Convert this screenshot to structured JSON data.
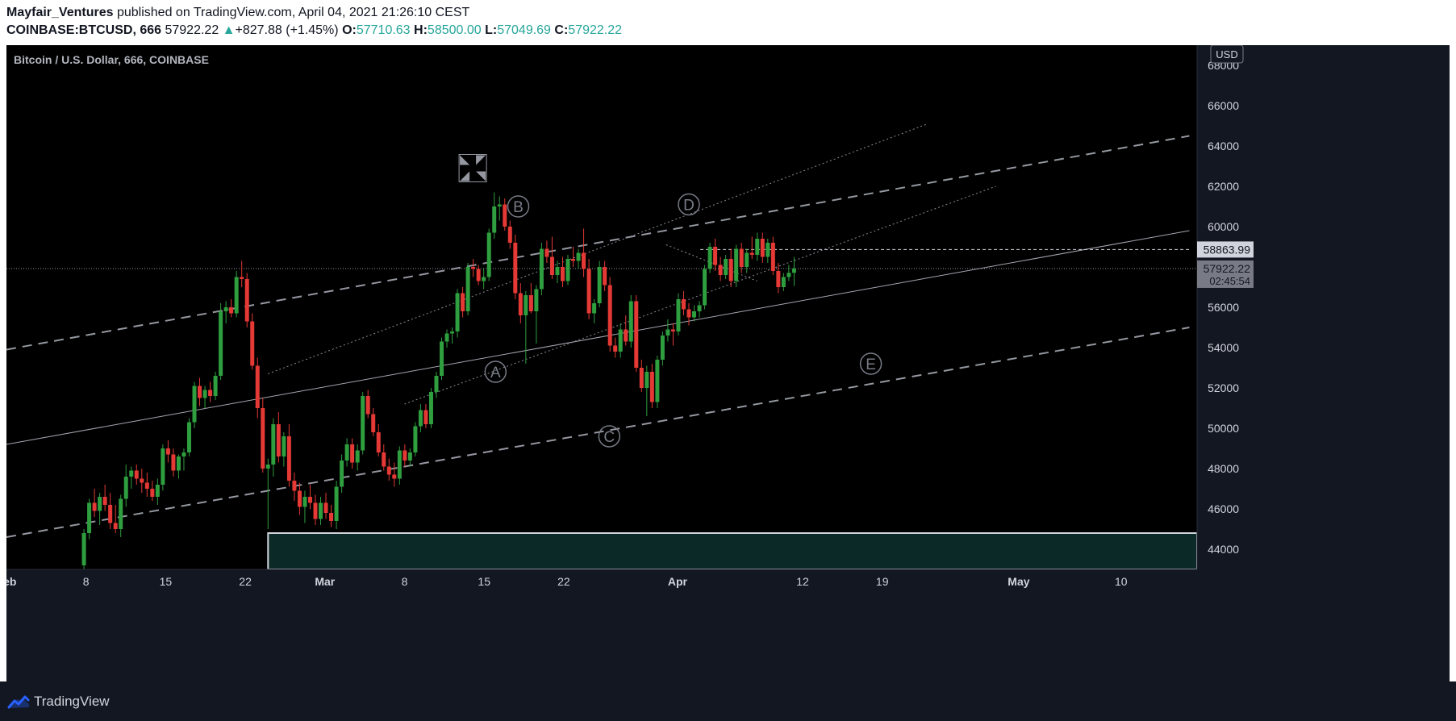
{
  "header": {
    "author": "Mayfair_Ventures",
    "published": "published on TradingView.com, April 04, 2021 21:26:10 CEST",
    "symbol": "COINBASE:BTCUSD, 666",
    "last": "57922.22",
    "arrow": "▲",
    "change": "+827.88 (+1.45%)",
    "o_label": "O:",
    "o_value": "57710.63",
    "h_label": "H:",
    "h_value": "58500.00",
    "l_label": "L:",
    "l_value": "57049.69",
    "c_label": "C:",
    "c_value": "57922.22"
  },
  "chart_title": "Bitcoin / U.S. Dollar, 666, COINBASE",
  "currency": "USD",
  "footer": {
    "brand": "TradingView"
  },
  "colors": {
    "background": "#131722",
    "up": "#26a69a",
    "up_candle": "#2e9e3f",
    "down_candle": "#e53935",
    "text": "#b2b5be",
    "axis_text": "#d1d4dc"
  },
  "chart_data": {
    "type": "candlestick",
    "title": "Bitcoin / U.S. Dollar, 666, COINBASE",
    "timeframe_minutes": 666,
    "ylim": [
      43000,
      69000
    ],
    "y_ticks": [
      44000,
      46000,
      48000,
      50000,
      52000,
      54000,
      56000,
      58000,
      60000,
      62000,
      64000,
      66000,
      68000
    ],
    "y_tick_labels": [
      "44000",
      "46000",
      "48000",
      "50000",
      "52000",
      "54000",
      "56000",
      "58000",
      "60000",
      "62000",
      "64000",
      "66000",
      "68000"
    ],
    "x_ticks": [
      {
        "label": "Feb",
        "date": "2021-02-01"
      },
      {
        "label": "8",
        "date": "2021-02-08"
      },
      {
        "label": "15",
        "date": "2021-02-15"
      },
      {
        "label": "22",
        "date": "2021-02-22"
      },
      {
        "label": "Mar",
        "date": "2021-03-01"
      },
      {
        "label": "8",
        "date": "2021-03-08"
      },
      {
        "label": "15",
        "date": "2021-03-15"
      },
      {
        "label": "22",
        "date": "2021-03-22"
      },
      {
        "label": "Apr",
        "date": "2021-04-01"
      },
      {
        "label": "12",
        "date": "2021-04-12"
      },
      {
        "label": "19",
        "date": "2021-04-19"
      },
      {
        "label": "May",
        "date": "2021-05-01"
      },
      {
        "label": "10",
        "date": "2021-05-10"
      }
    ],
    "price_labels": [
      {
        "value": 58863.99,
        "text": "58863.99",
        "style": "dashed-level"
      },
      {
        "value": 57922.22,
        "text": "57922.22",
        "sub": "02:45:54",
        "style": "last-price"
      }
    ],
    "last_price": 57922.22,
    "countdown": "02:45:54",
    "wave_labels": [
      {
        "label": "A",
        "date": "2021-03-16",
        "price": 52800
      },
      {
        "label": "B",
        "date": "2021-03-18",
        "price": 61000
      },
      {
        "label": "C",
        "date": "2021-03-26",
        "price": 49600
      },
      {
        "label": "D",
        "date": "2021-04-02",
        "price": 61100
      },
      {
        "label": "E",
        "date": "2021-04-18",
        "price": 53200
      }
    ],
    "cross_marker": {
      "date": "2021-03-14",
      "price": 62900
    },
    "trendlines": [
      {
        "style": "dashed",
        "from": {
          "date": "2021-02-01",
          "price": 53900
        },
        "to": {
          "date": "2021-05-16",
          "price": 64500
        }
      },
      {
        "style": "dashed",
        "from": {
          "date": "2021-02-01",
          "price": 44600
        },
        "to": {
          "date": "2021-05-16",
          "price": 55000
        }
      },
      {
        "style": "solid",
        "from": {
          "date": "2021-02-01",
          "price": 49200
        },
        "to": {
          "date": "2021-05-16",
          "price": 59800
        }
      },
      {
        "style": "dotted",
        "from": {
          "date": "2021-02-24",
          "price": 52700
        },
        "to": {
          "date": "2021-04-23",
          "price": 65100
        }
      },
      {
        "style": "dotted",
        "from": {
          "date": "2021-03-08",
          "price": 51200
        },
        "to": {
          "date": "2021-04-29",
          "price": 62000
        }
      },
      {
        "style": "dotted",
        "from": {
          "date": "2021-03-31",
          "price": 59100
        },
        "to": {
          "date": "2021-04-08",
          "price": 57300
        }
      },
      {
        "style": "dashed-level",
        "from": {
          "date": "2021-04-03",
          "price": 58864
        },
        "to": {
          "date": "2021-05-16",
          "price": 58864
        }
      }
    ],
    "zone": {
      "from_date": "2021-02-24",
      "to_date": "2021-05-16",
      "top": 44800,
      "bottom": 43000
    },
    "candles": [
      {
        "o": 43200,
        "h": 45000,
        "l": 43000,
        "c": 44800
      },
      {
        "o": 44800,
        "h": 46500,
        "l": 44500,
        "c": 46300
      },
      {
        "o": 46300,
        "h": 47000,
        "l": 45600,
        "c": 45900
      },
      {
        "o": 45900,
        "h": 46800,
        "l": 45200,
        "c": 46600
      },
      {
        "o": 46600,
        "h": 47200,
        "l": 45900,
        "c": 46200
      },
      {
        "o": 46200,
        "h": 46800,
        "l": 45000,
        "c": 45300
      },
      {
        "o": 45300,
        "h": 46200,
        "l": 44800,
        "c": 45000
      },
      {
        "o": 45000,
        "h": 46700,
        "l": 44600,
        "c": 46500
      },
      {
        "o": 46500,
        "h": 48200,
        "l": 46100,
        "c": 47600
      },
      {
        "o": 47600,
        "h": 48100,
        "l": 47000,
        "c": 47900
      },
      {
        "o": 47900,
        "h": 48200,
        "l": 47200,
        "c": 47500
      },
      {
        "o": 47500,
        "h": 48000,
        "l": 46800,
        "c": 47300
      },
      {
        "o": 47300,
        "h": 47800,
        "l": 46600,
        "c": 47000
      },
      {
        "o": 47000,
        "h": 47400,
        "l": 46400,
        "c": 46600
      },
      {
        "o": 46600,
        "h": 47500,
        "l": 46200,
        "c": 47200
      },
      {
        "o": 47200,
        "h": 49200,
        "l": 46900,
        "c": 49000
      },
      {
        "o": 49000,
        "h": 49400,
        "l": 48300,
        "c": 48700
      },
      {
        "o": 48700,
        "h": 49000,
        "l": 47600,
        "c": 47900
      },
      {
        "o": 47900,
        "h": 48700,
        "l": 47500,
        "c": 48600
      },
      {
        "o": 48600,
        "h": 49000,
        "l": 47900,
        "c": 48800
      },
      {
        "o": 48800,
        "h": 50500,
        "l": 48600,
        "c": 50300
      },
      {
        "o": 50300,
        "h": 52300,
        "l": 50000,
        "c": 52100
      },
      {
        "o": 52100,
        "h": 52500,
        "l": 51100,
        "c": 51500
      },
      {
        "o": 51500,
        "h": 52100,
        "l": 51000,
        "c": 51900
      },
      {
        "o": 51900,
        "h": 52300,
        "l": 51300,
        "c": 51600
      },
      {
        "o": 51600,
        "h": 52800,
        "l": 51400,
        "c": 52600
      },
      {
        "o": 52600,
        "h": 56200,
        "l": 52400,
        "c": 55800
      },
      {
        "o": 55800,
        "h": 56300,
        "l": 55200,
        "c": 56000
      },
      {
        "o": 56000,
        "h": 56400,
        "l": 55500,
        "c": 55700
      },
      {
        "o": 55700,
        "h": 57800,
        "l": 55500,
        "c": 57500
      },
      {
        "o": 57500,
        "h": 58300,
        "l": 57000,
        "c": 57400
      },
      {
        "o": 57400,
        "h": 57700,
        "l": 55000,
        "c": 55300
      },
      {
        "o": 55300,
        "h": 55700,
        "l": 52900,
        "c": 53100
      },
      {
        "o": 53100,
        "h": 53500,
        "l": 50500,
        "c": 51000
      },
      {
        "o": 51000,
        "h": 51500,
        "l": 47800,
        "c": 48000
      },
      {
        "o": 48000,
        "h": 48500,
        "l": 45000,
        "c": 48200
      },
      {
        "o": 48200,
        "h": 50500,
        "l": 47600,
        "c": 50200
      },
      {
        "o": 50200,
        "h": 50800,
        "l": 48300,
        "c": 48600
      },
      {
        "o": 48600,
        "h": 49800,
        "l": 48100,
        "c": 49600
      },
      {
        "o": 49600,
        "h": 50200,
        "l": 47100,
        "c": 47400
      },
      {
        "o": 47400,
        "h": 47800,
        "l": 46400,
        "c": 46900
      },
      {
        "o": 46900,
        "h": 47300,
        "l": 45700,
        "c": 46100
      },
      {
        "o": 46100,
        "h": 46900,
        "l": 45300,
        "c": 46600
      },
      {
        "o": 46600,
        "h": 47200,
        "l": 46000,
        "c": 46300
      },
      {
        "o": 46300,
        "h": 46700,
        "l": 45200,
        "c": 45500
      },
      {
        "o": 45500,
        "h": 46600,
        "l": 45200,
        "c": 46300
      },
      {
        "o": 46300,
        "h": 46800,
        "l": 45500,
        "c": 45800
      },
      {
        "o": 45800,
        "h": 46200,
        "l": 45100,
        "c": 45400
      },
      {
        "o": 45400,
        "h": 47400,
        "l": 45000,
        "c": 47100
      },
      {
        "o": 47100,
        "h": 48700,
        "l": 46800,
        "c": 48400
      },
      {
        "o": 48400,
        "h": 49500,
        "l": 48100,
        "c": 49200
      },
      {
        "o": 49200,
        "h": 49500,
        "l": 48000,
        "c": 48300
      },
      {
        "o": 48300,
        "h": 49200,
        "l": 47900,
        "c": 48900
      },
      {
        "o": 48900,
        "h": 51800,
        "l": 48700,
        "c": 51600
      },
      {
        "o": 51600,
        "h": 51900,
        "l": 50500,
        "c": 50700
      },
      {
        "o": 50700,
        "h": 51000,
        "l": 49600,
        "c": 49800
      },
      {
        "o": 49800,
        "h": 50200,
        "l": 48600,
        "c": 48800
      },
      {
        "o": 48800,
        "h": 49200,
        "l": 47900,
        "c": 48100
      },
      {
        "o": 48100,
        "h": 48500,
        "l": 47400,
        "c": 47700
      },
      {
        "o": 47700,
        "h": 48300,
        "l": 47100,
        "c": 47500
      },
      {
        "o": 47500,
        "h": 49100,
        "l": 47200,
        "c": 48900
      },
      {
        "o": 48900,
        "h": 49200,
        "l": 48100,
        "c": 48400
      },
      {
        "o": 48400,
        "h": 49000,
        "l": 48100,
        "c": 48800
      },
      {
        "o": 48800,
        "h": 50300,
        "l": 48600,
        "c": 50100
      },
      {
        "o": 50100,
        "h": 51200,
        "l": 49800,
        "c": 50900
      },
      {
        "o": 50900,
        "h": 51200,
        "l": 50000,
        "c": 50200
      },
      {
        "o": 50200,
        "h": 52000,
        "l": 50000,
        "c": 51800
      },
      {
        "o": 51800,
        "h": 52800,
        "l": 51500,
        "c": 52600
      },
      {
        "o": 52600,
        "h": 54500,
        "l": 52400,
        "c": 54300
      },
      {
        "o": 54300,
        "h": 54900,
        "l": 54000,
        "c": 54700
      },
      {
        "o": 54700,
        "h": 55000,
        "l": 54200,
        "c": 54800
      },
      {
        "o": 54800,
        "h": 56900,
        "l": 54500,
        "c": 56700
      },
      {
        "o": 56700,
        "h": 57000,
        "l": 55500,
        "c": 55800
      },
      {
        "o": 55800,
        "h": 58200,
        "l": 55600,
        "c": 58000
      },
      {
        "o": 58000,
        "h": 58400,
        "l": 57500,
        "c": 57900
      },
      {
        "o": 57900,
        "h": 58100,
        "l": 57100,
        "c": 57300
      },
      {
        "o": 57300,
        "h": 57900,
        "l": 56900,
        "c": 57500
      },
      {
        "o": 57500,
        "h": 59900,
        "l": 57300,
        "c": 59700
      },
      {
        "o": 59700,
        "h": 61700,
        "l": 59400,
        "c": 61000
      },
      {
        "o": 61000,
        "h": 61500,
        "l": 60300,
        "c": 61100
      },
      {
        "o": 61100,
        "h": 61400,
        "l": 59800,
        "c": 60000
      },
      {
        "o": 60000,
        "h": 60300,
        "l": 58900,
        "c": 59200
      },
      {
        "o": 59200,
        "h": 59600,
        "l": 56400,
        "c": 56700
      },
      {
        "o": 56700,
        "h": 57200,
        "l": 55200,
        "c": 55600
      },
      {
        "o": 55600,
        "h": 56800,
        "l": 53200,
        "c": 56600
      },
      {
        "o": 56600,
        "h": 57200,
        "l": 55700,
        "c": 55800
      },
      {
        "o": 55800,
        "h": 57100,
        "l": 54200,
        "c": 56900
      },
      {
        "o": 56900,
        "h": 59200,
        "l": 56600,
        "c": 58900
      },
      {
        "o": 58900,
        "h": 59300,
        "l": 58200,
        "c": 58500
      },
      {
        "o": 58500,
        "h": 59500,
        "l": 57400,
        "c": 57600
      },
      {
        "o": 57600,
        "h": 58300,
        "l": 57200,
        "c": 58000
      },
      {
        "o": 58000,
        "h": 58500,
        "l": 57000,
        "c": 57300
      },
      {
        "o": 57300,
        "h": 58600,
        "l": 57100,
        "c": 58400
      },
      {
        "o": 58400,
        "h": 59000,
        "l": 58000,
        "c": 58300
      },
      {
        "o": 58300,
        "h": 58900,
        "l": 57900,
        "c": 58700
      },
      {
        "o": 58700,
        "h": 59900,
        "l": 57500,
        "c": 57900
      },
      {
        "o": 57900,
        "h": 58400,
        "l": 55400,
        "c": 55700
      },
      {
        "o": 55700,
        "h": 56400,
        "l": 55200,
        "c": 56200
      },
      {
        "o": 56200,
        "h": 58300,
        "l": 56000,
        "c": 58000
      },
      {
        "o": 58000,
        "h": 58300,
        "l": 56800,
        "c": 57100
      },
      {
        "o": 57100,
        "h": 57500,
        "l": 53800,
        "c": 54100
      },
      {
        "o": 54100,
        "h": 54500,
        "l": 53500,
        "c": 53800
      },
      {
        "o": 53800,
        "h": 55200,
        "l": 53500,
        "c": 54900
      },
      {
        "o": 54900,
        "h": 55600,
        "l": 54100,
        "c": 54300
      },
      {
        "o": 54300,
        "h": 56600,
        "l": 54000,
        "c": 56300
      },
      {
        "o": 56300,
        "h": 56600,
        "l": 52800,
        "c": 53000
      },
      {
        "o": 53000,
        "h": 53400,
        "l": 51800,
        "c": 52000
      },
      {
        "o": 52000,
        "h": 53100,
        "l": 50600,
        "c": 52800
      },
      {
        "o": 52800,
        "h": 53200,
        "l": 51000,
        "c": 51300
      },
      {
        "o": 51300,
        "h": 53600,
        "l": 51000,
        "c": 53400
      },
      {
        "o": 53400,
        "h": 54800,
        "l": 53100,
        "c": 54600
      },
      {
        "o": 54600,
        "h": 55400,
        "l": 54300,
        "c": 54900
      },
      {
        "o": 54900,
        "h": 55200,
        "l": 54100,
        "c": 54800
      },
      {
        "o": 54800,
        "h": 56700,
        "l": 54600,
        "c": 56400
      },
      {
        "o": 56400,
        "h": 56800,
        "l": 55600,
        "c": 55900
      },
      {
        "o": 55900,
        "h": 56200,
        "l": 55100,
        "c": 55500
      },
      {
        "o": 55500,
        "h": 56100,
        "l": 55300,
        "c": 55800
      },
      {
        "o": 55800,
        "h": 56300,
        "l": 55500,
        "c": 56100
      },
      {
        "o": 56100,
        "h": 58100,
        "l": 55900,
        "c": 57900
      },
      {
        "o": 57900,
        "h": 59200,
        "l": 57700,
        "c": 59000
      },
      {
        "o": 59000,
        "h": 59400,
        "l": 57800,
        "c": 58100
      },
      {
        "o": 58100,
        "h": 58500,
        "l": 57300,
        "c": 57600
      },
      {
        "o": 57600,
        "h": 58600,
        "l": 57400,
        "c": 58400
      },
      {
        "o": 58400,
        "h": 58900,
        "l": 57000,
        "c": 57300
      },
      {
        "o": 57300,
        "h": 59100,
        "l": 57000,
        "c": 58900
      },
      {
        "o": 58900,
        "h": 59200,
        "l": 57700,
        "c": 58000
      },
      {
        "o": 58000,
        "h": 58900,
        "l": 57700,
        "c": 58700
      },
      {
        "o": 58700,
        "h": 59500,
        "l": 58400,
        "c": 58600
      },
      {
        "o": 58600,
        "h": 59700,
        "l": 58300,
        "c": 59400
      },
      {
        "o": 59400,
        "h": 59700,
        "l": 58200,
        "c": 58500
      },
      {
        "o": 58500,
        "h": 59400,
        "l": 58200,
        "c": 59200
      },
      {
        "o": 59200,
        "h": 59500,
        "l": 57600,
        "c": 57800
      },
      {
        "o": 57800,
        "h": 58200,
        "l": 56700,
        "c": 57000
      },
      {
        "o": 57000,
        "h": 57700,
        "l": 56800,
        "c": 57500
      },
      {
        "o": 57500,
        "h": 58100,
        "l": 57300,
        "c": 57710
      },
      {
        "o": 57710,
        "h": 58500,
        "l": 57050,
        "c": 57922
      }
    ]
  }
}
